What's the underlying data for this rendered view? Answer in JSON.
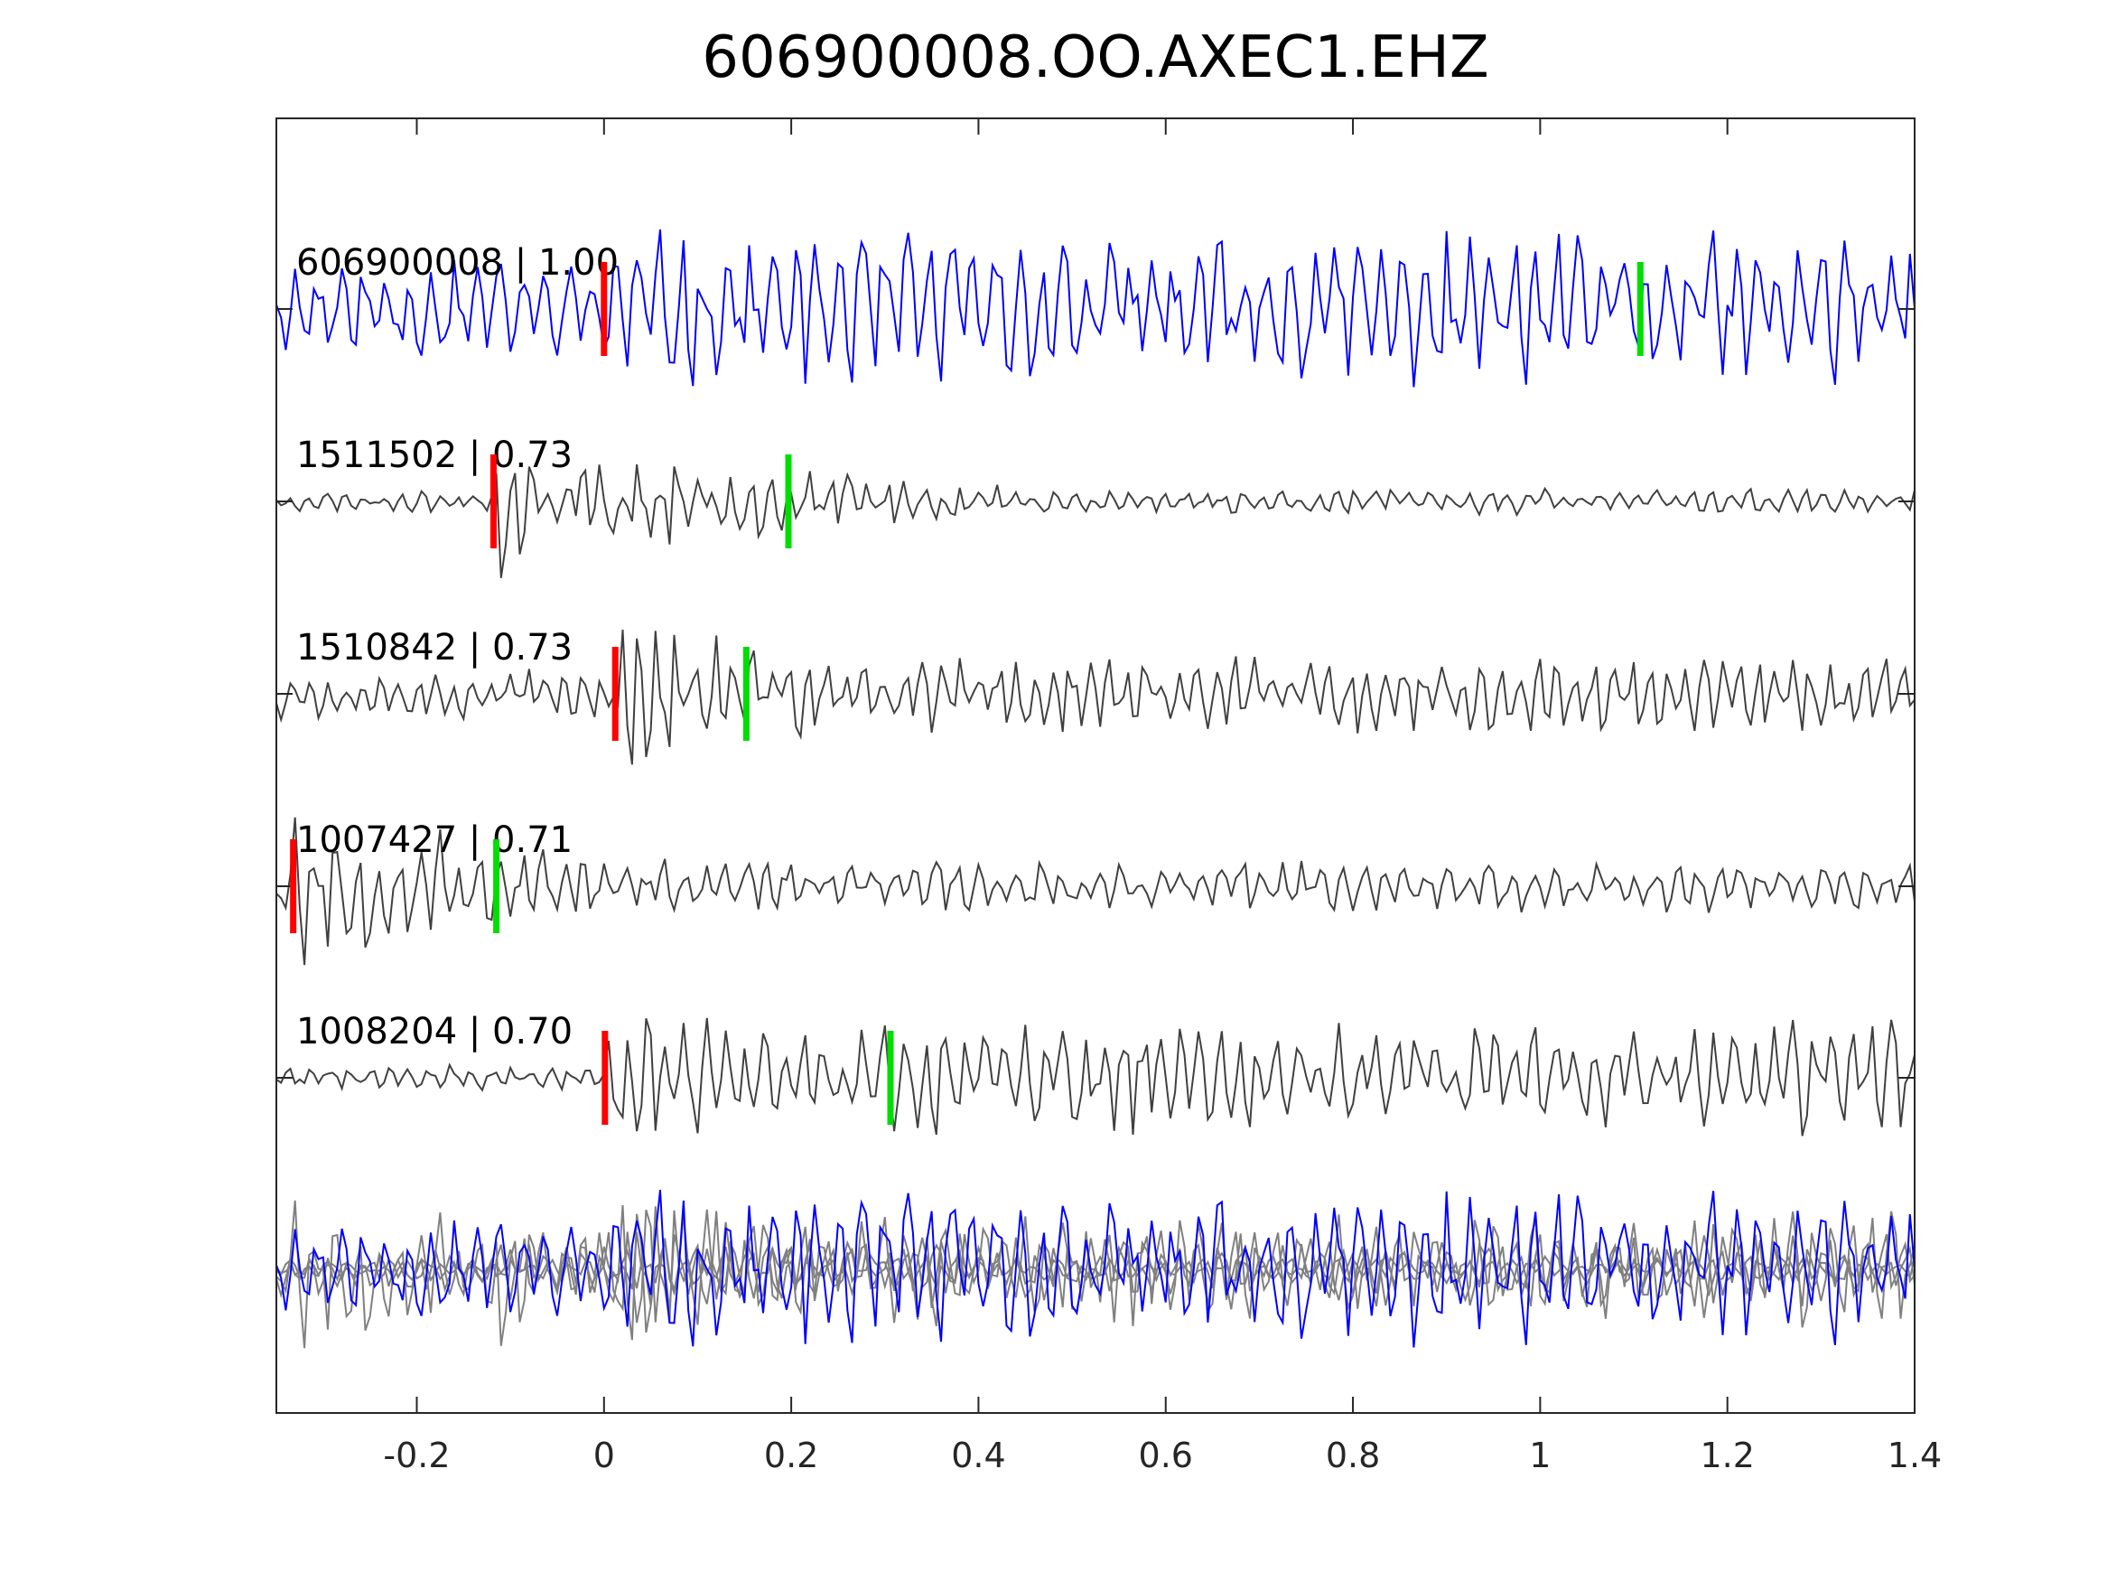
{
  "chart_data": {
    "type": "line",
    "title": "606900008.OO.AXEC1.EHZ",
    "xlabel": "",
    "ylabel": "",
    "xlim": [
      -0.35,
      1.4
    ],
    "x_ticks": [
      "-0.2",
      "0",
      "0.2",
      "0.4",
      "0.6",
      "0.8",
      "1",
      "1.2",
      "1.4"
    ],
    "x_tick_values": [
      -0.2,
      0,
      0.2,
      0.4,
      0.6,
      0.8,
      1.0,
      1.2,
      1.4
    ],
    "grid": false,
    "sample_interval": 0.005,
    "colors": {
      "reference": "#0000ff",
      "match": "#404040",
      "stack": "#808080",
      "p_pick": "#ff0000",
      "s_pick": "#00dd00",
      "axis": "#262626"
    },
    "series": [
      {
        "label": "606900008 | 1.00",
        "event_id": "606900008",
        "cc": 1.0,
        "color": "#0000ff",
        "p_pick": 0.0,
        "s_pick": 1.107,
        "period": 0.024,
        "noise": 0.55,
        "onset": 0.0,
        "peak": 1.0,
        "coda": 0.9,
        "seed": 11
      },
      {
        "label": "1511502 | 0.73",
        "event_id": "1511502",
        "cc": 0.73,
        "color": "#404040",
        "p_pick": -0.118,
        "s_pick": 0.197,
        "period": 0.02,
        "noise": 0.12,
        "onset": -0.118,
        "peak": 1.0,
        "coda": 0.15,
        "seed": 23
      },
      {
        "label": "1510842 | 0.73",
        "event_id": "1510842",
        "cc": 0.73,
        "color": "#404040",
        "p_pick": 0.012,
        "s_pick": 0.152,
        "period": 0.02,
        "noise": 0.3,
        "onset": 0.012,
        "peak": 1.0,
        "coda": 0.45,
        "seed": 37
      },
      {
        "label": "1007427 | 0.71",
        "event_id": "1007427",
        "cc": 0.71,
        "color": "#404040",
        "p_pick": -0.332,
        "s_pick": -0.115,
        "period": 0.022,
        "noise": 0.4,
        "onset": -0.332,
        "peak": 1.0,
        "coda": 0.3,
        "seed": 53
      },
      {
        "label": "1008204 | 0.70",
        "event_id": "1008204",
        "cc": 0.7,
        "color": "#404040",
        "p_pick": 0.001,
        "s_pick": 0.306,
        "period": 0.021,
        "noise": 0.15,
        "onset": 0.001,
        "peak": 1.0,
        "coda": 0.65,
        "seed": 71
      }
    ],
    "stack": {
      "description_visible": false
    }
  }
}
